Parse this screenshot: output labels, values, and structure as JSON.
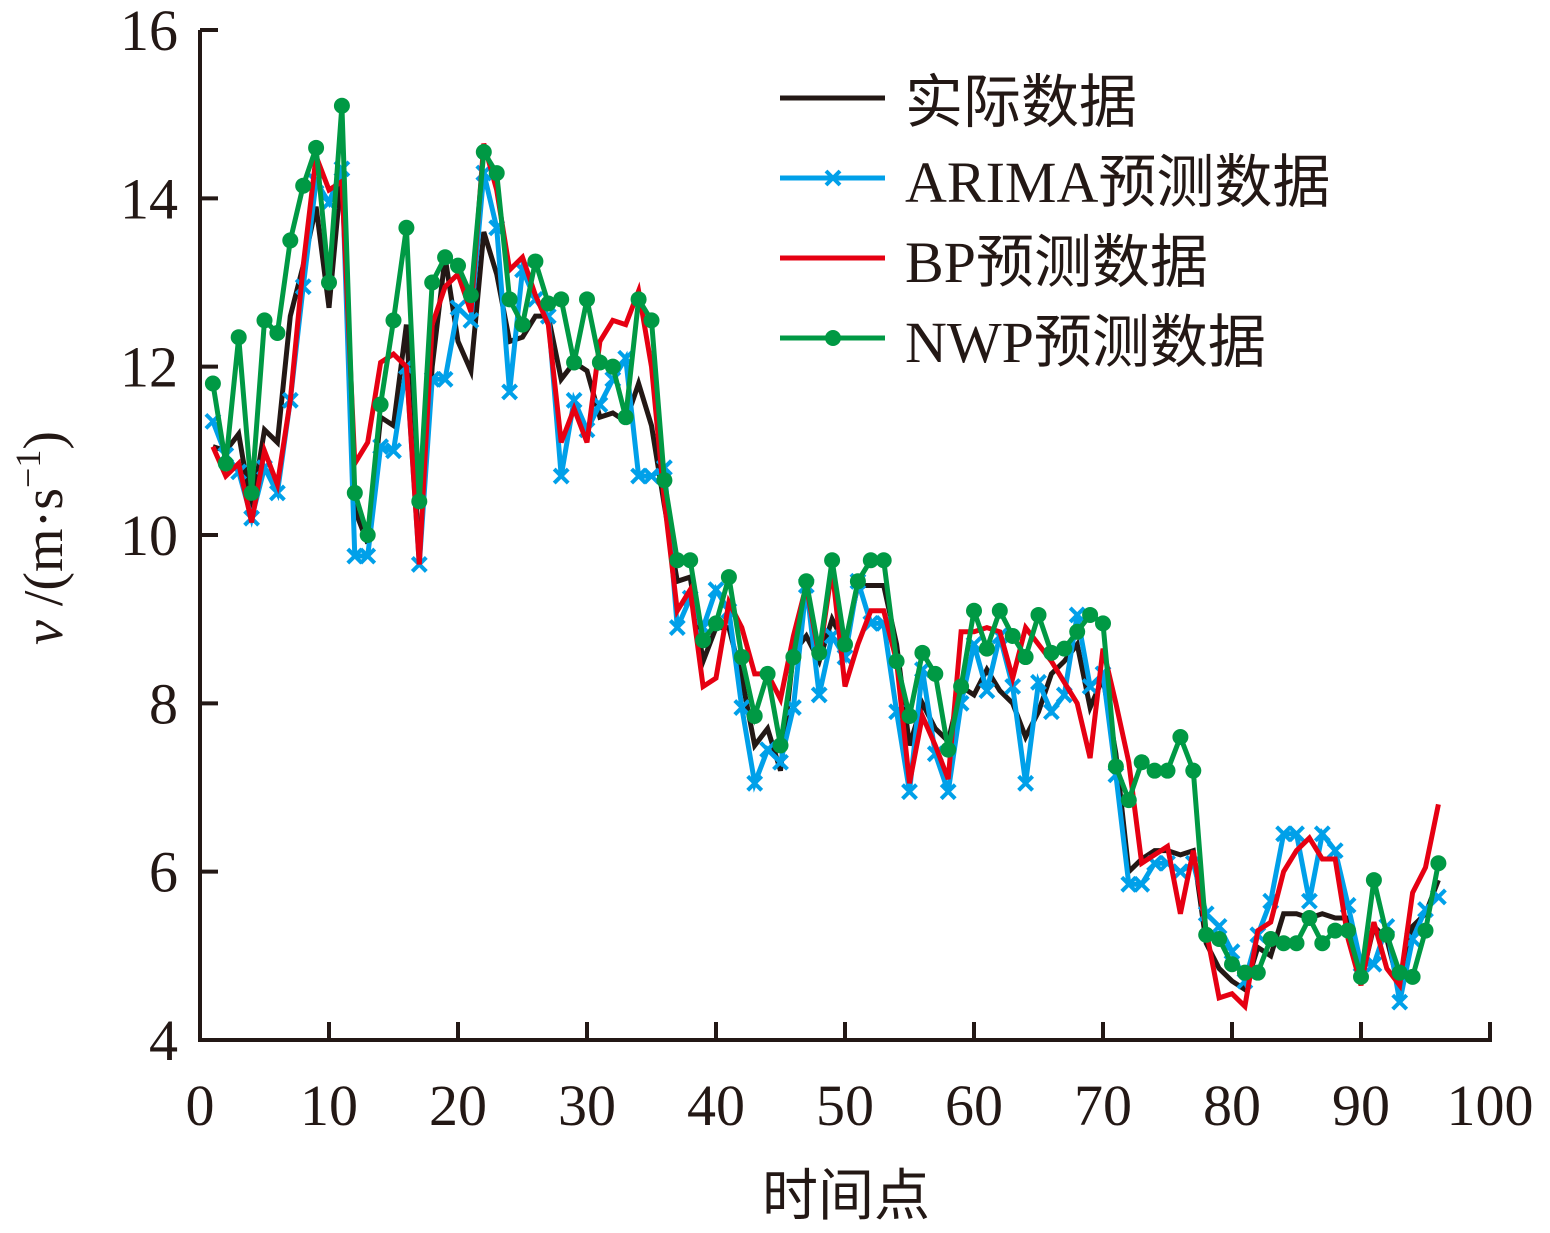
{
  "chart_data": {
    "type": "line",
    "title": "",
    "xlabel": "时间点",
    "ylabel": {
      "var": "v",
      "unit": " /(m·s",
      "exp": "−1",
      "close": ")"
    },
    "xlim": [
      0,
      100
    ],
    "ylim": [
      4,
      16
    ],
    "xticks": [
      0,
      10,
      20,
      30,
      40,
      50,
      60,
      70,
      80,
      90,
      100
    ],
    "yticks": [
      4,
      6,
      8,
      10,
      12,
      14,
      16
    ],
    "grid": false,
    "legend_position": "top-right",
    "x": [
      1,
      2,
      3,
      4,
      5,
      6,
      7,
      8,
      9,
      10,
      11,
      12,
      13,
      14,
      15,
      16,
      17,
      18,
      19,
      20,
      21,
      22,
      23,
      24,
      25,
      26,
      27,
      28,
      29,
      30,
      31,
      32,
      33,
      34,
      35,
      36,
      37,
      38,
      39,
      40,
      41,
      42,
      43,
      44,
      45,
      46,
      47,
      48,
      49,
      50,
      51,
      52,
      53,
      54,
      55,
      56,
      57,
      58,
      59,
      60,
      61,
      62,
      63,
      64,
      65,
      66,
      67,
      68,
      69,
      70,
      71,
      72,
      73,
      74,
      75,
      76,
      77,
      78,
      79,
      80,
      81,
      82,
      83,
      84,
      85,
      86,
      87,
      88,
      89,
      90,
      91,
      92,
      93,
      94,
      95,
      96
    ],
    "series": [
      {
        "name": "实际数据",
        "color": "#231815",
        "marker": "none",
        "values": [
          11.05,
          11.0,
          11.2,
          10.3,
          11.25,
          11.1,
          12.6,
          13.2,
          13.9,
          12.7,
          14.35,
          10.3,
          9.9,
          11.4,
          11.3,
          12.5,
          9.7,
          12.0,
          13.3,
          12.3,
          11.95,
          13.6,
          13.1,
          12.3,
          12.35,
          12.6,
          12.6,
          11.85,
          12.05,
          11.95,
          11.4,
          11.45,
          11.35,
          11.8,
          11.3,
          10.35,
          9.45,
          9.5,
          8.5,
          8.9,
          8.9,
          8.3,
          7.5,
          7.7,
          7.2,
          8.6,
          8.8,
          8.5,
          9.0,
          8.7,
          9.4,
          9.4,
          9.4,
          8.7,
          7.5,
          8.0,
          7.7,
          7.55,
          8.2,
          8.1,
          8.4,
          8.15,
          8.0,
          7.6,
          7.9,
          8.35,
          8.5,
          8.7,
          7.95,
          8.3,
          7.4,
          6.0,
          6.15,
          6.25,
          6.25,
          6.2,
          6.25,
          5.15,
          4.85,
          4.7,
          4.6,
          5.1,
          5.0,
          5.5,
          5.5,
          5.45,
          5.5,
          5.45,
          5.45,
          4.7,
          5.35,
          5.2,
          4.6,
          5.35,
          5.5,
          5.9
        ]
      },
      {
        "name": "ARIMA预测数据",
        "color": "#00a0e9",
        "marker": "x",
        "values": [
          11.35,
          10.95,
          10.75,
          10.2,
          10.8,
          10.5,
          11.6,
          12.95,
          14.2,
          13.95,
          14.35,
          9.75,
          9.75,
          11.05,
          11.0,
          12.0,
          9.65,
          11.85,
          11.85,
          12.7,
          12.55,
          14.3,
          13.65,
          11.7,
          13.15,
          12.8,
          12.6,
          10.7,
          11.6,
          11.25,
          11.55,
          11.85,
          12.1,
          10.7,
          10.7,
          10.8,
          8.9,
          9.25,
          8.9,
          9.35,
          9.1,
          7.95,
          7.05,
          7.45,
          7.3,
          7.95,
          9.4,
          8.1,
          8.8,
          8.55,
          9.45,
          8.95,
          8.95,
          7.9,
          6.95,
          8.4,
          7.4,
          6.95,
          8.0,
          8.7,
          8.15,
          8.8,
          8.2,
          7.05,
          8.25,
          7.9,
          8.1,
          9.05,
          8.2,
          8.35,
          7.15,
          5.85,
          5.85,
          6.1,
          6.1,
          6.0,
          6.1,
          5.5,
          5.35,
          5.05,
          4.7,
          5.25,
          5.65,
          6.45,
          6.45,
          5.65,
          6.45,
          6.25,
          5.6,
          4.9,
          4.9,
          5.35,
          4.45,
          5.2,
          5.55,
          5.7
        ]
      },
      {
        "name": "BP预测数据",
        "color": "#e60012",
        "marker": "none",
        "values": [
          11.05,
          10.7,
          10.85,
          10.15,
          11.0,
          10.6,
          11.6,
          13.2,
          14.5,
          14.1,
          14.2,
          10.85,
          11.1,
          12.05,
          12.15,
          12.0,
          9.65,
          12.5,
          12.95,
          13.1,
          12.65,
          14.65,
          14.1,
          13.15,
          13.3,
          12.85,
          12.5,
          11.1,
          11.5,
          11.1,
          12.3,
          12.55,
          12.5,
          12.9,
          12.0,
          10.4,
          9.1,
          9.35,
          8.2,
          8.3,
          9.2,
          8.9,
          8.35,
          8.35,
          8.05,
          8.8,
          9.4,
          8.55,
          9.6,
          8.2,
          8.7,
          9.1,
          9.1,
          8.5,
          7.05,
          7.85,
          7.5,
          7.1,
          8.85,
          8.85,
          8.9,
          8.85,
          8.3,
          8.9,
          8.7,
          8.5,
          8.25,
          8.0,
          7.35,
          8.65,
          8.0,
          7.3,
          6.1,
          6.2,
          6.3,
          5.5,
          6.25,
          5.3,
          4.5,
          4.55,
          4.4,
          5.3,
          5.4,
          6.0,
          6.25,
          6.4,
          6.15,
          6.15,
          5.2,
          4.65,
          5.4,
          4.85,
          4.65,
          5.75,
          6.05,
          6.8
        ]
      },
      {
        "name": "NWP预测数据",
        "color": "#009944",
        "marker": "dot",
        "values": [
          11.8,
          10.85,
          12.35,
          10.5,
          12.55,
          12.4,
          13.5,
          14.15,
          14.6,
          13.0,
          15.1,
          10.5,
          10.0,
          11.55,
          12.55,
          13.65,
          10.4,
          13.0,
          13.3,
          13.2,
          12.85,
          14.55,
          14.3,
          12.8,
          12.5,
          13.25,
          12.75,
          12.8,
          12.05,
          12.8,
          12.05,
          12.0,
          11.4,
          12.8,
          12.55,
          10.65,
          9.7,
          9.7,
          8.75,
          8.95,
          9.5,
          8.55,
          7.85,
          8.35,
          7.5,
          8.55,
          9.45,
          8.6,
          9.7,
          8.7,
          9.45,
          9.7,
          9.7,
          8.5,
          7.85,
          8.6,
          8.35,
          7.45,
          8.2,
          9.1,
          8.65,
          9.1,
          8.8,
          8.55,
          9.05,
          8.6,
          8.65,
          8.85,
          9.05,
          8.95,
          7.25,
          6.85,
          7.3,
          7.2,
          7.2,
          7.6,
          7.2,
          5.25,
          5.2,
          4.9,
          4.8,
          4.8,
          5.2,
          5.15,
          5.15,
          5.45,
          5.15,
          5.3,
          5.3,
          4.75,
          5.9,
          5.25,
          4.8,
          4.75,
          5.3,
          6.1
        ]
      }
    ]
  }
}
